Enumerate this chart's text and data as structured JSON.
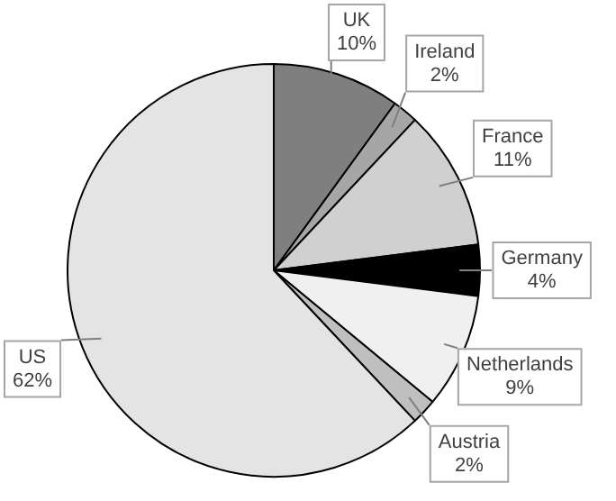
{
  "chart_data": {
    "type": "pie",
    "categories": [
      "UK",
      "Ireland",
      "France",
      "Germany",
      "Netherlands",
      "Austria",
      "US"
    ],
    "values": [
      10,
      2,
      11,
      4,
      9,
      2,
      62
    ],
    "value_labels": [
      "10%",
      "2%",
      "11%",
      "4%",
      "9%",
      "2%",
      "62%"
    ],
    "colors": [
      "#7f7f7f",
      "#a6a6a6",
      "#d0d0d0",
      "#000000",
      "#f0f0f0",
      "#bfbfbf",
      "#e4e4e4"
    ],
    "legend": false
  }
}
